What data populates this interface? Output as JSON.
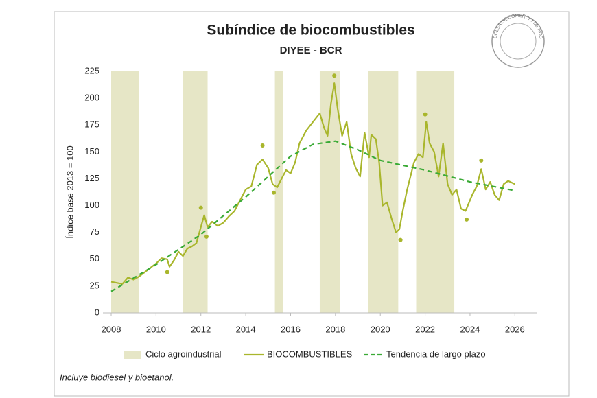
{
  "chart_data": {
    "type": "line",
    "title": "Subíndice de biocombustibles",
    "subtitle": "DIYEE - BCR",
    "y_label": "Índice base 2013 = 100",
    "footnote": "Incluye biodiesel y bioetanol.",
    "logo": "BOLSA DE COMERCIO DE ROSARIO",
    "xlim": [
      2008,
      2027
    ],
    "xticks": [
      2008,
      2010,
      2012,
      2014,
      2016,
      2018,
      2020,
      2022,
      2024,
      2026
    ],
    "ylim": [
      0,
      225
    ],
    "yticks": [
      0,
      25,
      50,
      75,
      100,
      125,
      150,
      175,
      200,
      225
    ],
    "cycles": {
      "name": "Ciclo agroindustrial",
      "color": "#e6e6c6",
      "ranges": [
        [
          2008,
          2009.25
        ],
        [
          2011.2,
          2012.3
        ],
        [
          2015.3,
          2015.65
        ],
        [
          2017.3,
          2018.2
        ],
        [
          2019.45,
          2020.8
        ],
        [
          2021.6,
          2023.3
        ]
      ]
    },
    "series": [
      {
        "name": "BIOCOMBUSTIBLES",
        "color": "#a9b62c",
        "x": [
          2008,
          2008.5,
          2008.75,
          2009,
          2009.25,
          2009.5,
          2009.75,
          2010,
          2010.25,
          2010.5,
          2010.6,
          2010.8,
          2011,
          2011.2,
          2011.4,
          2011.6,
          2011.8,
          2012,
          2012.15,
          2012.3,
          2012.5,
          2012.75,
          2013,
          2013.25,
          2013.5,
          2013.75,
          2014,
          2014.25,
          2014.5,
          2014.75,
          2015,
          2015.2,
          2015.4,
          2015.6,
          2015.8,
          2016,
          2016.2,
          2016.4,
          2016.7,
          2017,
          2017.3,
          2017.5,
          2017.65,
          2017.8,
          2017.95,
          2018.1,
          2018.3,
          2018.5,
          2018.7,
          2018.9,
          2019.1,
          2019.3,
          2019.5,
          2019.6,
          2019.8,
          2019.95,
          2020.1,
          2020.3,
          2020.5,
          2020.7,
          2020.85,
          2021,
          2021.2,
          2021.5,
          2021.7,
          2021.9,
          2022.05,
          2022.2,
          2022.4,
          2022.6,
          2022.8,
          2023,
          2023.2,
          2023.4,
          2023.6,
          2023.8,
          2023.9,
          2024.1,
          2024.3,
          2024.5,
          2024.7,
          2024.9,
          2025.1,
          2025.3,
          2025.5,
          2025.7,
          2025.9,
          2026
        ],
        "values": [
          29,
          27,
          33,
          31,
          34,
          38,
          42,
          46,
          51,
          50,
          43,
          49,
          57,
          53,
          60,
          62,
          65,
          80,
          91,
          80,
          85,
          81,
          84,
          90,
          95,
          105,
          115,
          118,
          138,
          143,
          135,
          120,
          117,
          125,
          133,
          130,
          140,
          158,
          170,
          178,
          186,
          172,
          165,
          195,
          214,
          190,
          165,
          178,
          148,
          135,
          127,
          168,
          145,
          166,
          162,
          140,
          100,
          103,
          88,
          75,
          78,
          95,
          115,
          140,
          148,
          145,
          178,
          158,
          150,
          127,
          158,
          120,
          110,
          115,
          97,
          95,
          100,
          110,
          118,
          134,
          115,
          122,
          110,
          105,
          120,
          123,
          121,
          120
        ]
      },
      {
        "name": "Tendencia de largo plazo",
        "color": "#3aaa35",
        "dash": true,
        "x": [
          2008,
          2010,
          2012,
          2014,
          2016,
          2017,
          2018,
          2019,
          2020,
          2022,
          2024,
          2026
        ],
        "values": [
          20,
          45,
          73,
          108,
          146,
          157,
          160,
          152,
          142,
          133,
          122,
          114
        ]
      }
    ],
    "points": {
      "color": "#a9b62c",
      "x": [
        2010.5,
        2012,
        2012.25,
        2014.75,
        2015.25,
        2017.95,
        2020.9,
        2022,
        2023.85,
        2024.5
      ],
      "values": [
        38,
        98,
        71,
        156,
        112,
        221,
        68,
        185,
        87,
        142
      ]
    }
  }
}
